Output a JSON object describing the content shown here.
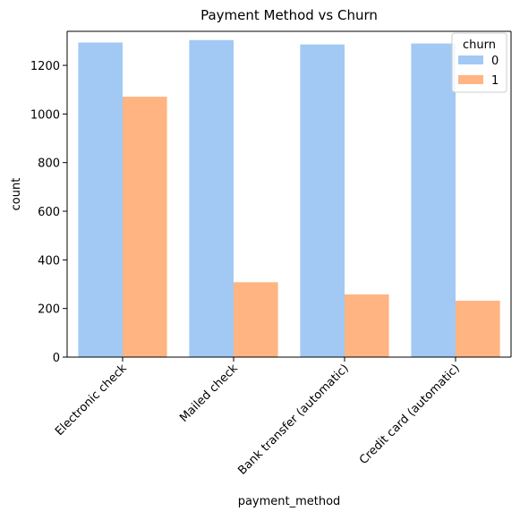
{
  "chart_data": {
    "type": "bar",
    "title": "Payment Method vs Churn",
    "xlabel": "payment_method",
    "ylabel": "count",
    "categories": [
      "Electronic check",
      "Mailed check",
      "Bank transfer (automatic)",
      "Credit card (automatic)"
    ],
    "series": [
      {
        "name": "0",
        "values": [
          1294,
          1304,
          1286,
          1290
        ],
        "color": "#a1c9f4"
      },
      {
        "name": "1",
        "values": [
          1071,
          308,
          258,
          232
        ],
        "color": "#ffb482"
      }
    ],
    "ylim": [
      0,
      1340
    ],
    "yticks": [
      0,
      200,
      400,
      600,
      800,
      1000,
      1200
    ],
    "legend": {
      "title": "churn",
      "placement": "top-right"
    },
    "grid": false,
    "xtick_rotation": 45
  }
}
